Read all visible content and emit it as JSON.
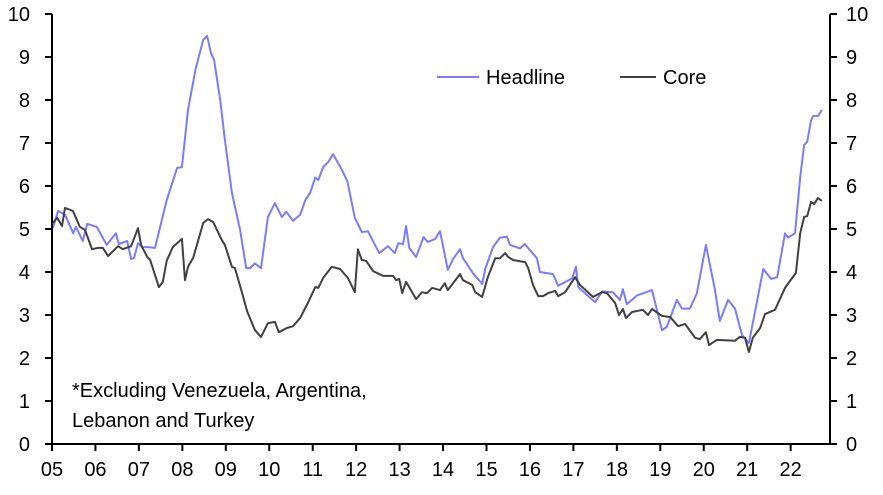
{
  "chart_data": {
    "type": "line",
    "title": "",
    "xlabel": "",
    "ylabel": "",
    "ylim": [
      0,
      10
    ],
    "xlim": [
      2005,
      2022.75
    ],
    "y_ticks": [
      "0",
      "1",
      "2",
      "3",
      "4",
      "5",
      "6",
      "7",
      "8",
      "9",
      "10"
    ],
    "x_ticks": [
      "05",
      "06",
      "07",
      "08",
      "09",
      "10",
      "11",
      "12",
      "13",
      "14",
      "15",
      "16",
      "17",
      "18",
      "19",
      "20",
      "21",
      "22"
    ],
    "grid": false,
    "legend_position": "top-right",
    "annotation": [
      "*Excluding Venezuela, Argentina,",
      "Lebanon and Turkey"
    ],
    "colors": {
      "Headline": "#7b7bff",
      "Core": "#404040"
    },
    "series": [
      {
        "name": "Headline",
        "points": [
          [
            2005.02,
            5.02
          ],
          [
            2005.14,
            5.42
          ],
          [
            2005.3,
            5.33
          ],
          [
            2005.49,
            4.9
          ],
          [
            2005.55,
            5.05
          ],
          [
            2005.71,
            4.72
          ],
          [
            2005.81,
            5.12
          ],
          [
            2006.03,
            5.05
          ],
          [
            2006.26,
            4.63
          ],
          [
            2006.47,
            4.9
          ],
          [
            2006.54,
            4.65
          ],
          [
            2006.73,
            4.72
          ],
          [
            2006.82,
            4.3
          ],
          [
            2006.89,
            4.33
          ],
          [
            2006.98,
            4.67
          ],
          [
            2007.07,
            4.58
          ],
          [
            2007.21,
            4.58
          ],
          [
            2007.37,
            4.56
          ],
          [
            2007.64,
            5.67
          ],
          [
            2007.88,
            6.42
          ],
          [
            2007.99,
            6.44
          ],
          [
            2008.13,
            7.77
          ],
          [
            2008.3,
            8.7
          ],
          [
            2008.48,
            9.4
          ],
          [
            2008.57,
            9.49
          ],
          [
            2008.66,
            9.09
          ],
          [
            2008.73,
            8.93
          ],
          [
            2008.87,
            8.0
          ],
          [
            2008.98,
            7.07
          ],
          [
            2009.14,
            5.84
          ],
          [
            2009.33,
            4.98
          ],
          [
            2009.47,
            4.09
          ],
          [
            2009.56,
            4.09
          ],
          [
            2009.67,
            4.2
          ],
          [
            2009.81,
            4.09
          ],
          [
            2009.97,
            5.28
          ],
          [
            2010.13,
            5.6
          ],
          [
            2010.29,
            5.28
          ],
          [
            2010.39,
            5.4
          ],
          [
            2010.55,
            5.19
          ],
          [
            2010.71,
            5.33
          ],
          [
            2010.83,
            5.67
          ],
          [
            2010.94,
            5.84
          ],
          [
            2011.06,
            6.2
          ],
          [
            2011.13,
            6.14
          ],
          [
            2011.24,
            6.44
          ],
          [
            2011.36,
            6.56
          ],
          [
            2011.47,
            6.74
          ],
          [
            2011.66,
            6.4
          ],
          [
            2011.8,
            6.1
          ],
          [
            2011.97,
            5.26
          ],
          [
            2012.13,
            4.93
          ],
          [
            2012.27,
            4.95
          ],
          [
            2012.53,
            4.44
          ],
          [
            2012.73,
            4.6
          ],
          [
            2012.89,
            4.44
          ],
          [
            2012.97,
            4.67
          ],
          [
            2013.08,
            4.65
          ],
          [
            2013.15,
            5.07
          ],
          [
            2013.22,
            4.56
          ],
          [
            2013.38,
            4.35
          ],
          [
            2013.55,
            4.81
          ],
          [
            2013.65,
            4.7
          ],
          [
            2013.82,
            4.77
          ],
          [
            2013.93,
            4.95
          ],
          [
            2014.11,
            4.05
          ],
          [
            2014.23,
            4.3
          ],
          [
            2014.39,
            4.53
          ],
          [
            2014.46,
            4.32
          ],
          [
            2014.69,
            3.97
          ],
          [
            2014.9,
            3.72
          ],
          [
            2014.97,
            4.07
          ],
          [
            2015.15,
            4.58
          ],
          [
            2015.31,
            4.8
          ],
          [
            2015.47,
            4.82
          ],
          [
            2015.54,
            4.63
          ],
          [
            2015.77,
            4.55
          ],
          [
            2015.88,
            4.65
          ],
          [
            2016.16,
            4.32
          ],
          [
            2016.23,
            4.0
          ],
          [
            2016.53,
            3.95
          ],
          [
            2016.65,
            3.68
          ],
          [
            2016.97,
            3.85
          ],
          [
            2017.06,
            4.12
          ],
          [
            2017.11,
            3.65
          ],
          [
            2017.5,
            3.3
          ],
          [
            2017.66,
            3.55
          ],
          [
            2017.91,
            3.53
          ],
          [
            2018.07,
            3.35
          ],
          [
            2018.14,
            3.6
          ],
          [
            2018.23,
            3.25
          ],
          [
            2018.46,
            3.45
          ],
          [
            2018.81,
            3.58
          ],
          [
            2019.04,
            2.65
          ],
          [
            2019.15,
            2.72
          ],
          [
            2019.38,
            3.35
          ],
          [
            2019.5,
            3.15
          ],
          [
            2019.68,
            3.15
          ],
          [
            2019.84,
            3.5
          ],
          [
            2020.05,
            4.63
          ],
          [
            2020.26,
            3.58
          ],
          [
            2020.37,
            2.86
          ],
          [
            2020.56,
            3.35
          ],
          [
            2020.72,
            3.15
          ],
          [
            2020.88,
            2.53
          ],
          [
            2021.04,
            2.35
          ],
          [
            2021.37,
            4.07
          ],
          [
            2021.55,
            3.84
          ],
          [
            2021.69,
            3.88
          ],
          [
            2021.87,
            4.9
          ],
          [
            2021.94,
            4.8
          ],
          [
            2022.1,
            4.9
          ],
          [
            2022.22,
            6.2
          ],
          [
            2022.31,
            6.95
          ],
          [
            2022.38,
            7.03
          ],
          [
            2022.47,
            7.53
          ],
          [
            2022.52,
            7.63
          ],
          [
            2022.63,
            7.63
          ],
          [
            2022.72,
            7.77
          ]
        ]
      },
      {
        "name": "Core",
        "points": [
          [
            2005.02,
            5.14
          ],
          [
            2005.12,
            5.26
          ],
          [
            2005.23,
            5.07
          ],
          [
            2005.3,
            5.49
          ],
          [
            2005.48,
            5.42
          ],
          [
            2005.64,
            5.05
          ],
          [
            2005.76,
            4.98
          ],
          [
            2005.92,
            4.53
          ],
          [
            2006.06,
            4.56
          ],
          [
            2006.17,
            4.56
          ],
          [
            2006.29,
            4.37
          ],
          [
            2006.52,
            4.6
          ],
          [
            2006.63,
            4.53
          ],
          [
            2006.82,
            4.6
          ],
          [
            2006.98,
            5.02
          ],
          [
            2007.05,
            4.63
          ],
          [
            2007.19,
            4.35
          ],
          [
            2007.26,
            4.28
          ],
          [
            2007.46,
            3.65
          ],
          [
            2007.55,
            3.77
          ],
          [
            2007.64,
            4.26
          ],
          [
            2007.78,
            4.58
          ],
          [
            2007.99,
            4.77
          ],
          [
            2008.06,
            3.81
          ],
          [
            2008.13,
            4.12
          ],
          [
            2008.25,
            4.33
          ],
          [
            2008.48,
            5.14
          ],
          [
            2008.59,
            5.23
          ],
          [
            2008.71,
            5.16
          ],
          [
            2008.91,
            4.74
          ],
          [
            2008.98,
            4.63
          ],
          [
            2009.14,
            4.12
          ],
          [
            2009.21,
            4.09
          ],
          [
            2009.37,
            3.53
          ],
          [
            2009.49,
            3.09
          ],
          [
            2009.67,
            2.65
          ],
          [
            2009.81,
            2.49
          ],
          [
            2009.97,
            2.81
          ],
          [
            2010.13,
            2.84
          ],
          [
            2010.22,
            2.6
          ],
          [
            2010.41,
            2.7
          ],
          [
            2010.55,
            2.74
          ],
          [
            2010.71,
            2.93
          ],
          [
            2010.89,
            3.28
          ],
          [
            2011.06,
            3.65
          ],
          [
            2011.13,
            3.63
          ],
          [
            2011.24,
            3.86
          ],
          [
            2011.44,
            4.12
          ],
          [
            2011.63,
            4.07
          ],
          [
            2011.81,
            3.86
          ],
          [
            2011.97,
            3.53
          ],
          [
            2012.04,
            4.53
          ],
          [
            2012.13,
            4.28
          ],
          [
            2012.23,
            4.26
          ],
          [
            2012.39,
            4.02
          ],
          [
            2012.62,
            3.91
          ],
          [
            2012.85,
            3.91
          ],
          [
            2012.92,
            3.81
          ],
          [
            2012.99,
            3.84
          ],
          [
            2013.06,
            3.51
          ],
          [
            2013.15,
            3.77
          ],
          [
            2013.38,
            3.37
          ],
          [
            2013.51,
            3.53
          ],
          [
            2013.63,
            3.51
          ],
          [
            2013.75,
            3.63
          ],
          [
            2013.93,
            3.58
          ],
          [
            2014.04,
            3.74
          ],
          [
            2014.11,
            3.58
          ],
          [
            2014.39,
            3.95
          ],
          [
            2014.46,
            3.81
          ],
          [
            2014.67,
            3.7
          ],
          [
            2014.74,
            3.53
          ],
          [
            2014.9,
            3.42
          ],
          [
            2015.03,
            3.88
          ],
          [
            2015.2,
            4.32
          ],
          [
            2015.31,
            4.32
          ],
          [
            2015.43,
            4.44
          ],
          [
            2015.5,
            4.35
          ],
          [
            2015.61,
            4.28
          ],
          [
            2015.89,
            4.23
          ],
          [
            2015.96,
            4.09
          ],
          [
            2016.07,
            3.7
          ],
          [
            2016.19,
            3.44
          ],
          [
            2016.3,
            3.44
          ],
          [
            2016.42,
            3.51
          ],
          [
            2016.58,
            3.56
          ],
          [
            2016.65,
            3.44
          ],
          [
            2016.81,
            3.53
          ],
          [
            2016.92,
            3.7
          ],
          [
            2017.04,
            3.88
          ],
          [
            2017.15,
            3.7
          ],
          [
            2017.45,
            3.42
          ],
          [
            2017.66,
            3.53
          ],
          [
            2017.77,
            3.51
          ],
          [
            2017.96,
            3.28
          ],
          [
            2018.05,
            3.0
          ],
          [
            2018.14,
            3.14
          ],
          [
            2018.21,
            2.93
          ],
          [
            2018.35,
            3.07
          ],
          [
            2018.6,
            3.12
          ],
          [
            2018.72,
            3.0
          ],
          [
            2018.81,
            3.14
          ],
          [
            2019.04,
            2.98
          ],
          [
            2019.23,
            2.95
          ],
          [
            2019.41,
            2.74
          ],
          [
            2019.57,
            2.79
          ],
          [
            2019.8,
            2.47
          ],
          [
            2019.91,
            2.44
          ],
          [
            2020.05,
            2.6
          ],
          [
            2020.12,
            2.3
          ],
          [
            2020.3,
            2.42
          ],
          [
            2020.72,
            2.4
          ],
          [
            2020.83,
            2.49
          ],
          [
            2020.95,
            2.47
          ],
          [
            2021.04,
            2.14
          ],
          [
            2021.13,
            2.47
          ],
          [
            2021.3,
            2.7
          ],
          [
            2021.41,
            3.02
          ],
          [
            2021.64,
            3.12
          ],
          [
            2021.87,
            3.63
          ],
          [
            2022.12,
            3.98
          ],
          [
            2022.22,
            4.9
          ],
          [
            2022.31,
            5.28
          ],
          [
            2022.38,
            5.3
          ],
          [
            2022.47,
            5.63
          ],
          [
            2022.54,
            5.58
          ],
          [
            2022.63,
            5.72
          ],
          [
            2022.72,
            5.65
          ]
        ]
      }
    ]
  }
}
